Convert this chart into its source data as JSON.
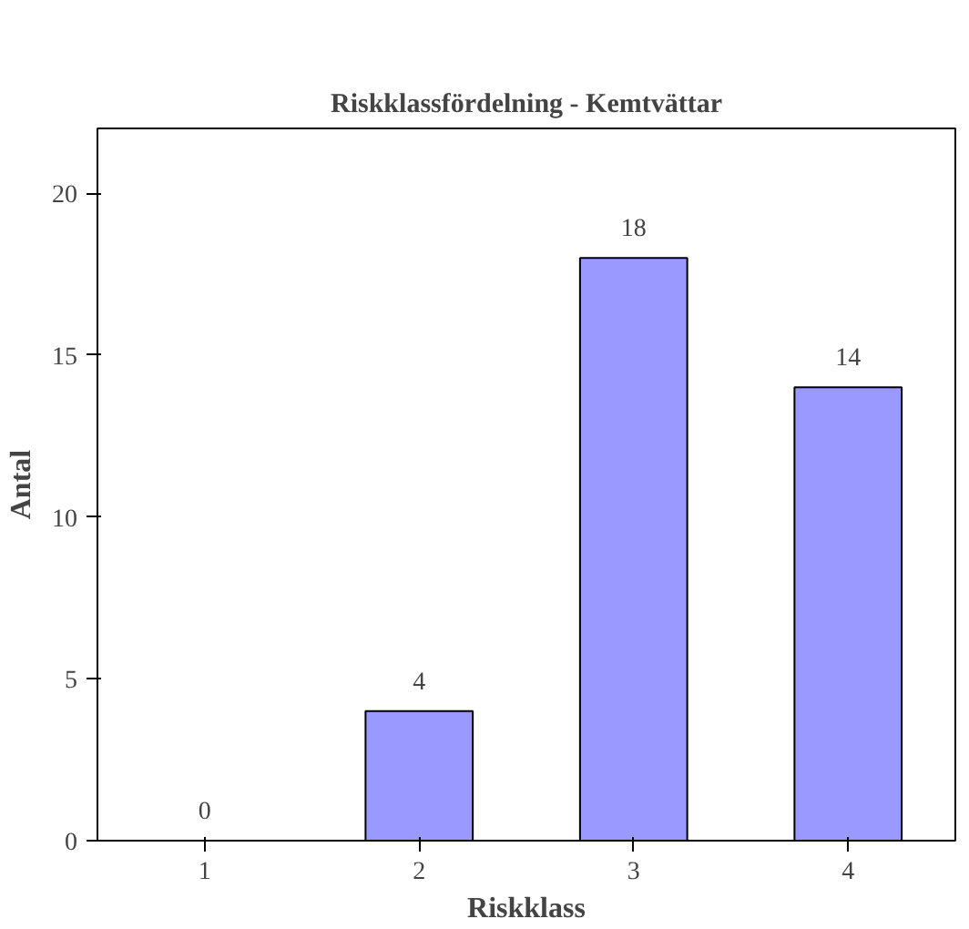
{
  "chart_data": {
    "type": "bar",
    "title": "Riskklassfördelning - Kemtvättar",
    "xlabel": "Riskklass",
    "ylabel": "Antal",
    "categories": [
      "1",
      "2",
      "3",
      "4"
    ],
    "values": [
      0,
      4,
      18,
      14
    ],
    "color": "#9999ff",
    "ylim": [
      0,
      22
    ],
    "yticks": [
      0,
      5,
      10,
      15,
      20
    ],
    "grid": false,
    "data_labels": true
  }
}
